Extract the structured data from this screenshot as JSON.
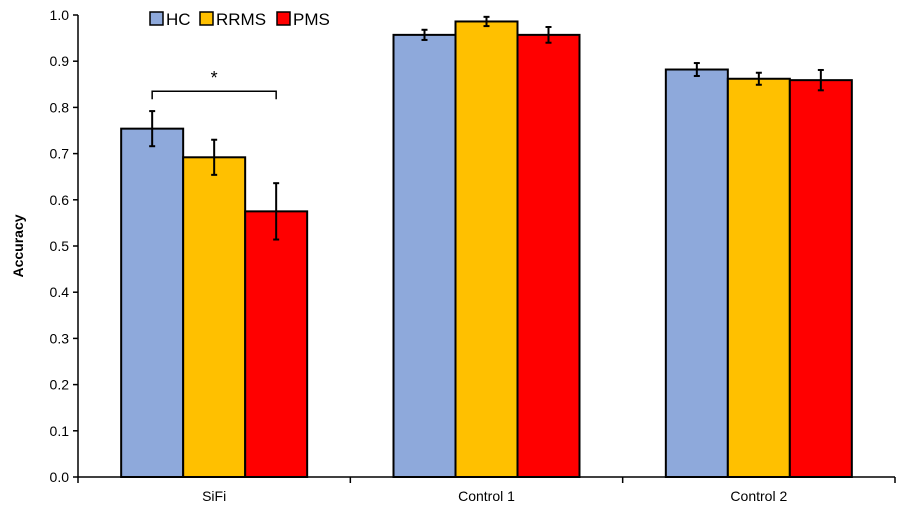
{
  "chart_data": {
    "type": "bar",
    "title": "",
    "xlabel": "",
    "ylabel": "Accuracy",
    "ylim": [
      0,
      1.0
    ],
    "yticks": [
      "0.0",
      "0.1",
      "0.2",
      "0.3",
      "0.4",
      "0.5",
      "0.6",
      "0.7",
      "0.8",
      "0.9",
      "1.0"
    ],
    "grid": false,
    "legend_position": "top-left",
    "categories": [
      "SiFi",
      "Control 1",
      "Control 2"
    ],
    "series": [
      {
        "name": "HC",
        "color": "#8EA9DB",
        "values": [
          0.754,
          0.957,
          0.882
        ],
        "errors": [
          0.038,
          0.011,
          0.014
        ]
      },
      {
        "name": "RRMS",
        "color": "#FFC000",
        "values": [
          0.692,
          0.986,
          0.862
        ],
        "errors": [
          0.038,
          0.01,
          0.013
        ]
      },
      {
        "name": "PMS",
        "color": "#FF0000",
        "values": [
          0.575,
          0.957,
          0.859
        ],
        "errors": [
          0.061,
          0.017,
          0.022
        ]
      }
    ],
    "annotations": [
      {
        "text": "*",
        "category": "SiFi",
        "from_series": "HC",
        "to_series": "PMS",
        "y": 0.835
      }
    ]
  }
}
